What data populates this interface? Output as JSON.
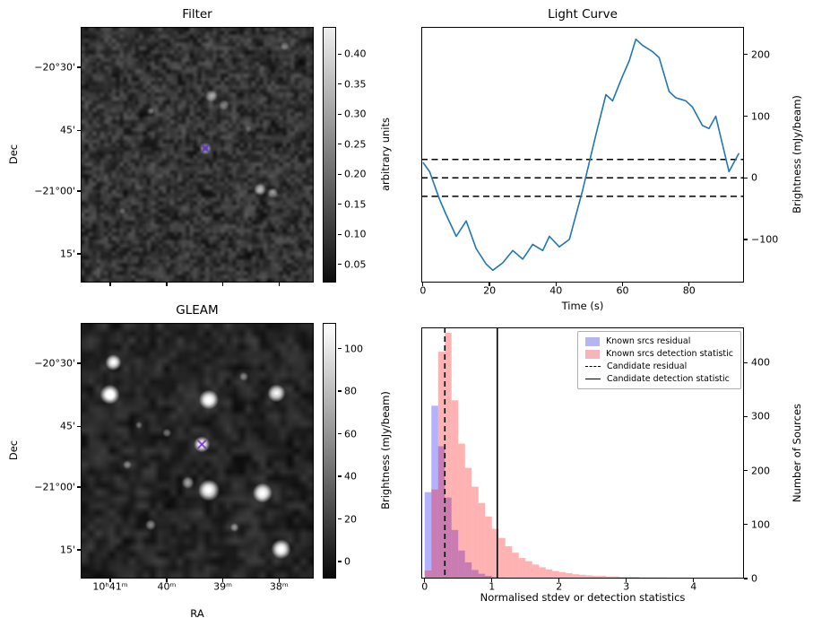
{
  "figure": {
    "background": "#ffffff"
  },
  "chart_data": [
    {
      "id": "filter",
      "type": "heatmap",
      "title": "Filter",
      "xlabel": "",
      "ylabel": "Dec",
      "ytick_labels": [
        "−20°30'",
        "45'",
        "−21°00'",
        "15'"
      ],
      "colorbar": {
        "label": "arbitrary units",
        "ticks": [
          0.4,
          0.35,
          0.3,
          0.25,
          0.2,
          0.15,
          0.1,
          0.05
        ],
        "range": [
          0.02,
          0.445
        ],
        "decimals": 2
      },
      "marker": {
        "shape": "x",
        "x": 0.535,
        "y": 0.475,
        "color": "#4343dd",
        "back_color": "#cc3a3a"
      },
      "bright_spots": [
        [
          0.56,
          0.27,
          7,
          0.5
        ],
        [
          0.615,
          0.305,
          6,
          0.4
        ],
        [
          0.535,
          0.475,
          7,
          0.55
        ],
        [
          0.77,
          0.635,
          7,
          0.5
        ],
        [
          0.825,
          0.65,
          6,
          0.42
        ],
        [
          0.875,
          0.075,
          5,
          0.35
        ],
        [
          0.3,
          0.33,
          4,
          0.25
        ],
        [
          0.72,
          0.4,
          4,
          0.22
        ],
        [
          0.18,
          0.72,
          4,
          0.22
        ]
      ],
      "noise": {
        "seed": 77,
        "cells": 60,
        "base": 0.03,
        "amp": 0.22,
        "cells2": 30,
        "amp2": 0.22
      }
    },
    {
      "id": "light-curve",
      "type": "line",
      "title": "Light Curve",
      "xlabel": "Time (s)",
      "ylabel": "Brightness (mJy/beam)",
      "color": "#1f77b4",
      "x": [
        0,
        2,
        5,
        7,
        10,
        13,
        16,
        19,
        21,
        24,
        27,
        30,
        33,
        36,
        38,
        41,
        44,
        46,
        48,
        50,
        52,
        55,
        57,
        60,
        62,
        64,
        66,
        69,
        71,
        74,
        76,
        79,
        81,
        84,
        86,
        88,
        90,
        92,
        95
      ],
      "y": [
        25,
        10,
        -35,
        -60,
        -95,
        -70,
        -115,
        -140,
        -150,
        -138,
        -118,
        -132,
        -108,
        -118,
        -95,
        -112,
        -100,
        -60,
        -20,
        25,
        70,
        135,
        125,
        165,
        190,
        225,
        215,
        205,
        195,
        140,
        130,
        125,
        115,
        85,
        80,
        100,
        55,
        10,
        40
      ],
      "hlines_dashed": [
        30,
        0,
        -30
      ],
      "xlim": [
        -0.5,
        96.5
      ],
      "ylim": [
        -170,
        245
      ],
      "xticks": [
        0,
        20,
        40,
        60,
        80
      ],
      "yticks": [
        -100,
        0,
        100,
        200
      ]
    },
    {
      "id": "gleam",
      "type": "heatmap",
      "title": "GLEAM",
      "xlabel": "RA",
      "ylabel": "Dec",
      "xtick_labels": [
        "10ʰ41ᵐ",
        "40ᵐ",
        "39ᵐ",
        "38ᵐ"
      ],
      "ytick_labels": [
        "−20°30'",
        "45'",
        "−21°00'",
        "15'"
      ],
      "colorbar": {
        "label": "Brightness (mJy/beam)",
        "ticks": [
          100,
          80,
          60,
          40,
          20,
          0
        ],
        "range": [
          -8,
          112
        ],
        "decimals": 0
      },
      "marker": {
        "shape": "x",
        "x": 0.52,
        "y": 0.475,
        "color": "#7a2ac8"
      },
      "bright_spots": [
        [
          0.14,
          0.155,
          9,
          0.95
        ],
        [
          0.125,
          0.28,
          11,
          1
        ],
        [
          0.55,
          0.3,
          11,
          1
        ],
        [
          0.84,
          0.275,
          10,
          0.95
        ],
        [
          0.7,
          0.21,
          5,
          0.35
        ],
        [
          0.52,
          0.475,
          9,
          0.9
        ],
        [
          0.55,
          0.655,
          12,
          1
        ],
        [
          0.46,
          0.625,
          7,
          0.5
        ],
        [
          0.78,
          0.665,
          11,
          1
        ],
        [
          0.86,
          0.885,
          11,
          1
        ],
        [
          0.3,
          0.79,
          6,
          0.45
        ],
        [
          0.2,
          0.555,
          5,
          0.35
        ],
        [
          0.66,
          0.8,
          5,
          0.4
        ],
        [
          0.37,
          0.43,
          5,
          0.4
        ],
        [
          0.25,
          0.4,
          4,
          0.3
        ]
      ],
      "noise": {
        "seed": 12,
        "cells": 34,
        "base": 0.03,
        "amp": 0.16,
        "cells2": 17,
        "amp2": 0.14
      }
    },
    {
      "id": "histogram",
      "type": "bar",
      "title": "",
      "xlabel": "Normalised stdev or detection statistics",
      "ylabel": "Number of Sources",
      "bin_start": 0,
      "bin_width": 0.1,
      "series": [
        {
          "name": "Known srcs residual",
          "color": "#0000ff",
          "alpha": 0.3,
          "values": [
            160,
            320,
            245,
            150,
            90,
            52,
            30,
            16,
            9,
            5,
            3,
            2
          ]
        },
        {
          "name": "Known srcs detection statistic",
          "color": "#ff0000",
          "alpha": 0.3,
          "values": [
            15,
            165,
            420,
            455,
            330,
            250,
            205,
            170,
            140,
            115,
            92,
            75,
            60,
            48,
            38,
            32,
            26,
            21,
            17,
            14,
            12,
            10,
            8,
            7,
            6,
            5,
            5,
            4,
            4,
            3,
            3,
            3,
            2,
            2,
            2,
            2,
            1,
            1,
            1,
            1,
            1,
            1,
            1,
            0,
            0,
            1,
            2
          ]
        }
      ],
      "vline_dashed": {
        "label": "Candidate residual",
        "x": 0.3
      },
      "vline_solid": {
        "label": "Candidate detection statistic",
        "x": 1.08
      },
      "legend": [
        {
          "type": "patch",
          "color": "#b5b5f4",
          "label": "Known srcs residual"
        },
        {
          "type": "patch",
          "color": "#f8b5b9",
          "label": "Known srcs detection statistic"
        },
        {
          "type": "dashed-line",
          "label": "Candidate residual"
        },
        {
          "type": "solid-line",
          "label": "Candidate detection statistic"
        }
      ],
      "xlim": [
        -0.05,
        4.75
      ],
      "ylim": [
        0,
        465
      ],
      "xticks": [
        0,
        1,
        2,
        3,
        4
      ],
      "yticks": [
        0,
        100,
        200,
        300,
        400
      ]
    }
  ]
}
